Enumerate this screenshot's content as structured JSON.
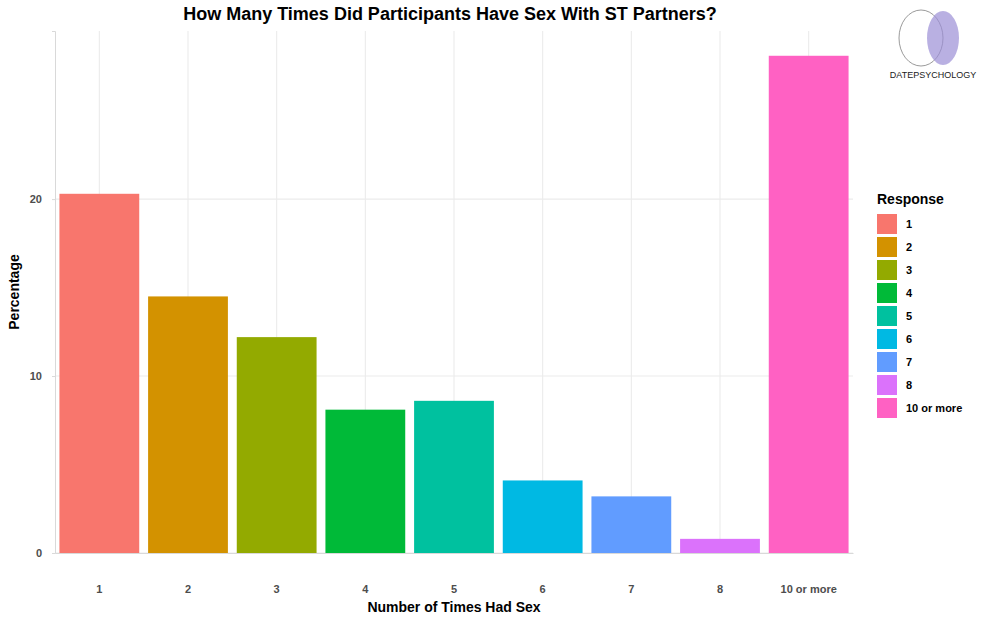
{
  "chart_data": {
    "type": "bar",
    "title": "How Many Times Did Participants Have Sex With ST Partners?",
    "x_label": "Number of Times Had Sex",
    "y_label": "Percentage",
    "categories": [
      "1",
      "2",
      "3",
      "4",
      "5",
      "6",
      "7",
      "8",
      "10 or more"
    ],
    "values": [
      20.3,
      14.5,
      12.2,
      8.1,
      8.6,
      4.1,
      3.2,
      0.8,
      28.1
    ],
    "colors": [
      "#F8766D",
      "#D39200",
      "#93AA00",
      "#00BA38",
      "#00C19F",
      "#00B9E3",
      "#619CFF",
      "#DB72FB",
      "#FF61C3"
    ],
    "ylim": [
      0,
      29.5
    ],
    "yticks": [
      0,
      10,
      20
    ],
    "grid": true,
    "legend": "right",
    "legend_title": "Response",
    "annotations": [
      "DATEPSYCHOLOGY"
    ]
  }
}
